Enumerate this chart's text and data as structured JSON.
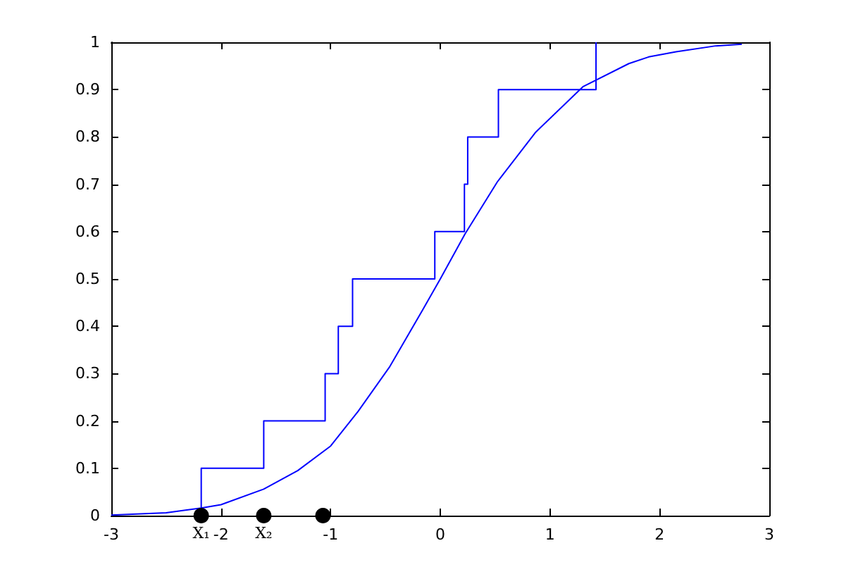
{
  "chart_data": {
    "type": "line",
    "xlim": [
      -3,
      3
    ],
    "xticks": [
      -3,
      -2,
      -1,
      0,
      1,
      2,
      3
    ],
    "ylim": [
      0,
      1
    ],
    "yticks": [
      0,
      0.1,
      0.2,
      0.3,
      0.4,
      0.5,
      0.6,
      0.7,
      0.8,
      0.9,
      1
    ],
    "grid": false,
    "series": [
      {
        "type": "step",
        "color": "#0000ff",
        "marker": "none",
        "x": [
          -2.18,
          -2.18,
          -1.61,
          -1.05,
          -0.93,
          -0.8,
          -0.05,
          0.22,
          0.25,
          0.53,
          1.42
        ],
        "values": [
          0,
          0.1,
          0.2,
          0.3,
          0.4,
          0.5,
          0.6,
          0.7,
          0.8,
          0.9,
          1
        ]
      },
      {
        "color": "#0000ff",
        "marker": "none",
        "x": [
          -3,
          -2.5,
          -2.18,
          -2,
          -1.61,
          -1.3,
          -1,
          -0.75,
          -0.46,
          -0.16,
          0,
          0.225,
          0.52,
          0.87,
          1.3,
          1.72,
          1.9,
          2.15,
          2.5,
          2.75
        ],
        "values": [
          0.001,
          0.006,
          0.016,
          0.023,
          0.056,
          0.095,
          0.147,
          0.22,
          0.315,
          0.435,
          0.5,
          0.595,
          0.705,
          0.81,
          0.906,
          0.955,
          0.969,
          0.98,
          0.992,
          0.996
        ]
      },
      {
        "type": "scatter",
        "color": "#000000",
        "marker": "circle",
        "x": [
          -2.18,
          -1.61,
          -1.07
        ],
        "values": [
          0,
          0,
          0
        ]
      }
    ],
    "annotations": [
      {
        "text": "X₁",
        "x": -2.18,
        "y": 0
      },
      {
        "text": "X₂",
        "x": -1.61,
        "y": 0
      }
    ]
  }
}
